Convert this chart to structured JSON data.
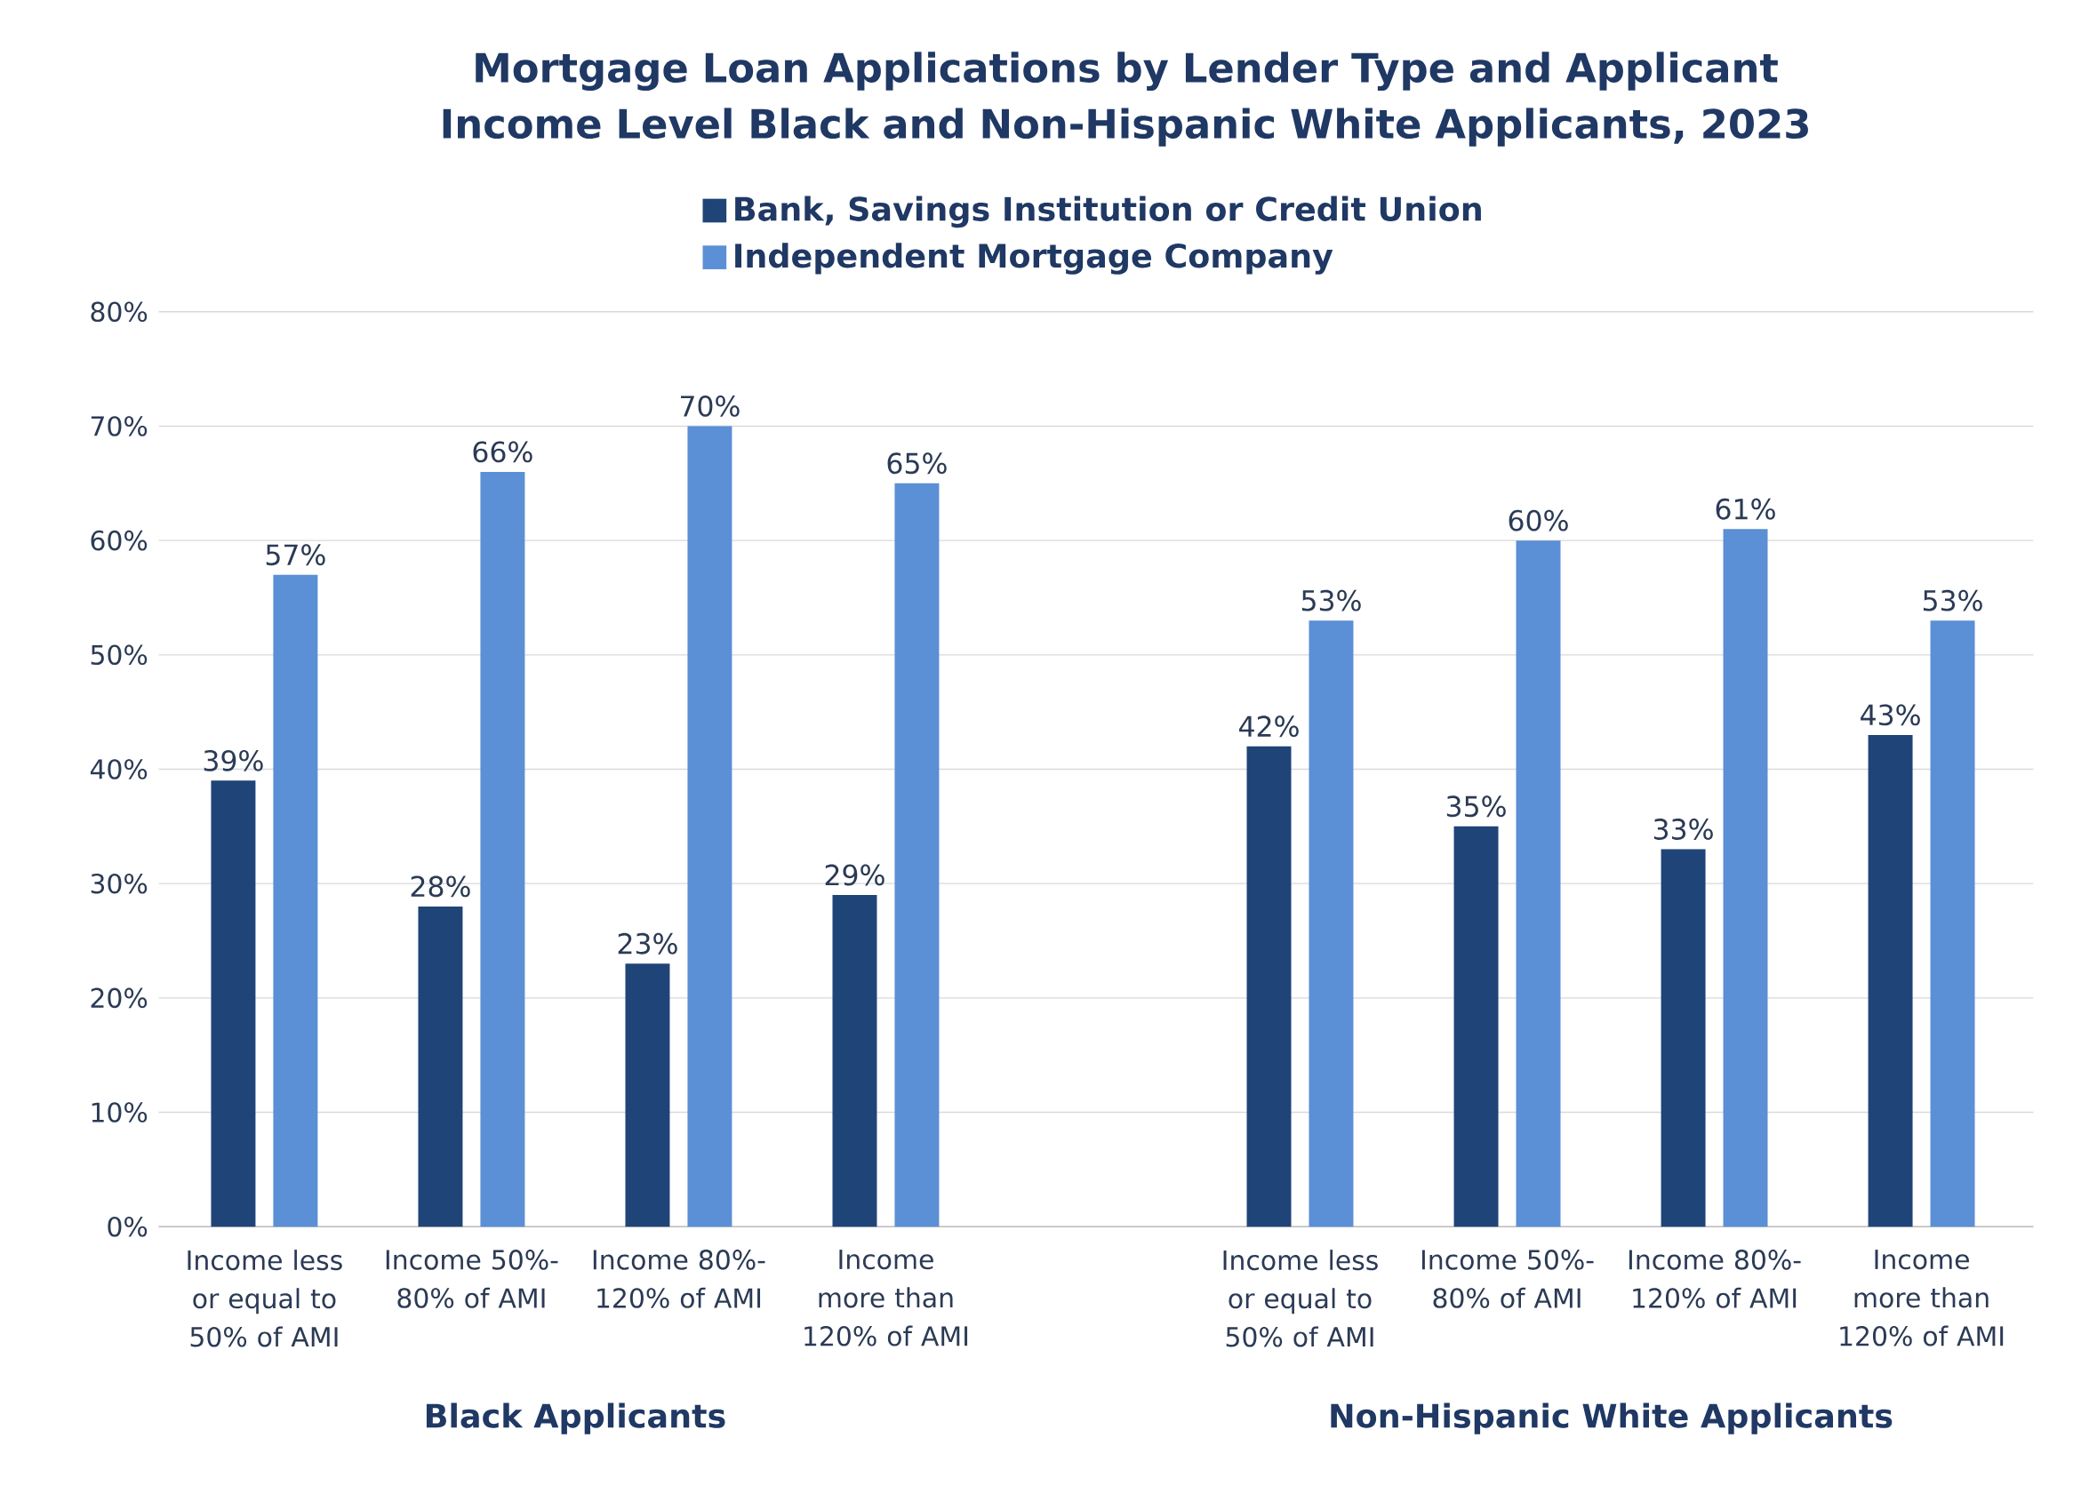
{
  "chart_data": {
    "type": "bar",
    "title": "Mortgage Loan Applications by Lender Type and Applicant Income Level Black and Non-Hispanic White Applicants, 2023",
    "categories": [
      "Income less or equal to 50% of AMI",
      "Income 50%-80% of AMI",
      "Income 80%-120% of AMI",
      "Income more than 120% of AMI",
      null,
      "Income less or equal to 50% of AMI",
      "Income 50%-80% of AMI",
      "Income 80%-120% of AMI",
      "Income more than 120% of AMI"
    ],
    "series": [
      {
        "name": "Bank, Savings Institution or Credit Union",
        "color": "#1f4478",
        "values": [
          39,
          28,
          23,
          29,
          null,
          42,
          35,
          33,
          43
        ],
        "value_labels": [
          "39%",
          "28%",
          "23%",
          "29%",
          null,
          "42%",
          "35%",
          "33%",
          "43%"
        ]
      },
      {
        "name": "Independent Mortgage Company",
        "color": "#5b8fd6",
        "values": [
          57,
          66,
          70,
          65,
          null,
          53,
          60,
          61,
          53
        ],
        "value_labels": [
          "57%",
          "66%",
          "70%",
          "65%",
          null,
          "53%",
          "60%",
          "61%",
          "53%"
        ]
      }
    ],
    "annotations": [
      "Black Applicants",
      "Non-Hispanic White Applicants"
    ],
    "ylim": [
      0,
      80
    ],
    "yticks": [
      {
        "value": 0,
        "label": "0%"
      },
      {
        "value": 10,
        "label": "10%"
      },
      {
        "value": 20,
        "label": "20%"
      },
      {
        "value": 30,
        "label": "30%"
      },
      {
        "value": 40,
        "label": "40%"
      },
      {
        "value": 50,
        "label": "50%"
      },
      {
        "value": 60,
        "label": "60%"
      },
      {
        "value": 70,
        "label": "70%"
      },
      {
        "value": 80,
        "label": "80%"
      }
    ],
    "grid": "y",
    "legend": "top"
  }
}
